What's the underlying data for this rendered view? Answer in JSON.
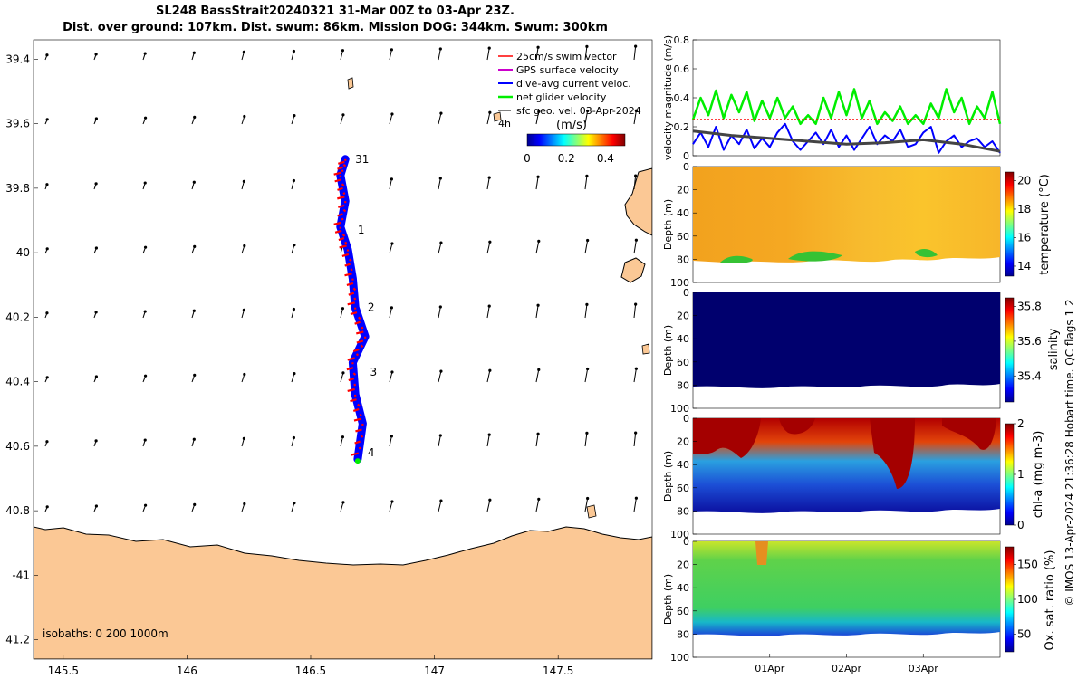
{
  "title": {
    "line1": "SL248 BassStrait20240321 31-Mar 00Z to 03-Apr 23Z.",
    "line2": "Dist. over ground: 107km. Dist. swum: 86km. Mission DOG: 344km. Swum: 300km"
  },
  "colors": {
    "land": "#fbc895",
    "swim": "#ff0000",
    "gps": "#cc00cc",
    "current": "#0000ff",
    "net": "#00ee00",
    "geo": "#000000",
    "deep": "#00006e"
  },
  "footer_text": "© IMOS 13-Apr-2024 21:36:28 Hobart time. QC flags 1  2",
  "chart_data": [
    {
      "id": "map",
      "type": "scatter",
      "title": "",
      "xlabel": "",
      "ylabel": "",
      "xlim": [
        145.38,
        147.88
      ],
      "ylim": [
        -41.26,
        -39.34
      ],
      "xticks": [
        145.5,
        146,
        146.5,
        147,
        147.5
      ],
      "xtick_labels": [
        "145.5",
        "146",
        "146.5",
        "147",
        "147.5"
      ],
      "yticks": [
        -39.4,
        -39.6,
        -39.8,
        -40.0,
        -40.2,
        -40.4,
        -40.6,
        -40.8,
        -41.0,
        -41.2
      ],
      "ytick_labels": [
        "39.4",
        "39.6",
        "39.8",
        "-40",
        "40.2",
        "40.4",
        "40.6",
        "40.8",
        "-41",
        "41.2"
      ],
      "legend": {
        "placement": "top-right",
        "entries": [
          "25cm/s swim vector",
          "GPS surface velocity",
          "dive-avg current veloc.",
          "net glider velocity",
          "sfc geo. vel. 03-Apr-2024"
        ],
        "note": "4h"
      },
      "colorbar": {
        "label": "(m/s)",
        "ticks": [
          0,
          0.2,
          0.4
        ],
        "tick_labels": [
          "0",
          "0.2",
          "0.4"
        ],
        "range": [
          0,
          0.5
        ]
      },
      "track": [
        {
          "lon": 146.64,
          "lat": -39.71
        },
        {
          "lon": 146.62,
          "lat": -39.76
        },
        {
          "lon": 146.64,
          "lat": -39.84
        },
        {
          "lon": 146.62,
          "lat": -39.92
        },
        {
          "lon": 146.65,
          "lat": -39.99
        },
        {
          "lon": 146.67,
          "lat": -40.08
        },
        {
          "lon": 146.68,
          "lat": -40.17
        },
        {
          "lon": 146.72,
          "lat": -40.26
        },
        {
          "lon": 146.67,
          "lat": -40.34
        },
        {
          "lon": 146.68,
          "lat": -40.44
        },
        {
          "lon": 146.71,
          "lat": -40.53
        },
        {
          "lon": 146.69,
          "lat": -40.64
        }
      ],
      "day_labels": [
        {
          "text": "31",
          "lon": 146.68,
          "lat": -39.71
        },
        {
          "text": "1",
          "lon": 146.69,
          "lat": -39.93
        },
        {
          "text": "2",
          "lon": 146.73,
          "lat": -40.17
        },
        {
          "text": "3",
          "lon": 146.74,
          "lat": -40.37
        },
        {
          "text": "4",
          "lon": 146.73,
          "lat": -40.62
        }
      ],
      "isobaths_label": "isobaths: 0   200  1000m"
    },
    {
      "id": "velocity",
      "type": "line",
      "ylabel": "velocity magnitude (m/s)",
      "ylim": [
        0,
        0.8
      ],
      "yticks": [
        0,
        0.2,
        0.4,
        0.6,
        0.8
      ],
      "ytick_labels": [
        "0",
        "0.2",
        "0.4",
        "0.6",
        "0.8"
      ],
      "xlim": [
        0,
        4
      ],
      "series": [
        {
          "name": "net glider velocity",
          "color": "#00ee00",
          "x": [
            0,
            0.1,
            0.2,
            0.3,
            0.4,
            0.5,
            0.6,
            0.7,
            0.8,
            0.9,
            1.0,
            1.1,
            1.2,
            1.3,
            1.4,
            1.5,
            1.6,
            1.7,
            1.8,
            1.9,
            2.0,
            2.1,
            2.2,
            2.3,
            2.4,
            2.5,
            2.6,
            2.7,
            2.8,
            2.9,
            3.0,
            3.1,
            3.2,
            3.3,
            3.4,
            3.5,
            3.6,
            3.7,
            3.8,
            3.9,
            4.0
          ],
          "y": [
            0.25,
            0.4,
            0.28,
            0.45,
            0.26,
            0.42,
            0.3,
            0.44,
            0.24,
            0.38,
            0.26,
            0.4,
            0.26,
            0.34,
            0.22,
            0.28,
            0.22,
            0.4,
            0.26,
            0.44,
            0.28,
            0.46,
            0.26,
            0.38,
            0.22,
            0.3,
            0.24,
            0.34,
            0.22,
            0.28,
            0.22,
            0.36,
            0.26,
            0.46,
            0.3,
            0.4,
            0.22,
            0.34,
            0.26,
            0.44,
            0.22
          ]
        },
        {
          "name": "dive-avg current veloc.",
          "color": "#0000ff",
          "x": [
            0,
            0.1,
            0.2,
            0.3,
            0.4,
            0.5,
            0.6,
            0.7,
            0.8,
            0.9,
            1.0,
            1.1,
            1.2,
            1.3,
            1.4,
            1.5,
            1.6,
            1.7,
            1.8,
            1.9,
            2.0,
            2.1,
            2.2,
            2.3,
            2.4,
            2.5,
            2.6,
            2.7,
            2.8,
            2.9,
            3.0,
            3.1,
            3.2,
            3.3,
            3.4,
            3.5,
            3.6,
            3.7,
            3.8,
            3.9,
            4.0
          ],
          "y": [
            0.08,
            0.16,
            0.06,
            0.2,
            0.04,
            0.14,
            0.08,
            0.18,
            0.05,
            0.12,
            0.06,
            0.16,
            0.22,
            0.1,
            0.04,
            0.1,
            0.16,
            0.08,
            0.18,
            0.06,
            0.14,
            0.04,
            0.12,
            0.2,
            0.08,
            0.14,
            0.1,
            0.18,
            0.06,
            0.08,
            0.16,
            0.2,
            0.02,
            0.1,
            0.14,
            0.06,
            0.1,
            0.12,
            0.06,
            0.1,
            0.02
          ]
        },
        {
          "name": "sfc geo. vel.",
          "color": "#444444",
          "x": [
            0,
            0.5,
            1.0,
            1.5,
            2.0,
            2.5,
            3.0,
            3.5,
            4.0
          ],
          "y": [
            0.17,
            0.14,
            0.12,
            0.1,
            0.08,
            0.09,
            0.11,
            0.08,
            0.03
          ]
        },
        {
          "name": "25cm/s swim vector",
          "color": "#ff0000",
          "x": [
            0,
            4
          ],
          "y": [
            0.25,
            0.25
          ]
        }
      ]
    },
    {
      "id": "temperature",
      "type": "heatmap",
      "ylabel": "Depth (m)",
      "ylim": [
        100,
        0
      ],
      "yticks": [
        0,
        20,
        40,
        60,
        80,
        100
      ],
      "ytick_labels": [
        "0",
        "20",
        "40",
        "60",
        "80",
        "100"
      ],
      "colorbar": {
        "label": "temperature (°C)",
        "range": [
          13.3,
          20.6
        ],
        "ticks": [
          14,
          16,
          18,
          20
        ],
        "tick_labels": [
          "14",
          "16",
          "18",
          "20"
        ]
      }
    },
    {
      "id": "salinity",
      "type": "heatmap",
      "ylabel": "Depth (m)",
      "ylim": [
        100,
        0
      ],
      "yticks": [
        0,
        20,
        40,
        60,
        80,
        100
      ],
      "ytick_labels": [
        "0",
        "20",
        "40",
        "60",
        "80",
        "100"
      ],
      "colorbar": {
        "label": "salinity",
        "range": [
          35.25,
          35.85
        ],
        "ticks": [
          35.4,
          35.6,
          35.8
        ],
        "tick_labels": [
          "35.4",
          "35.6",
          "35.8"
        ]
      }
    },
    {
      "id": "chla",
      "type": "heatmap",
      "ylabel": "Depth (m)",
      "ylim": [
        100,
        0
      ],
      "yticks": [
        0,
        20,
        40,
        60,
        80,
        100
      ],
      "ytick_labels": [
        "0",
        "20",
        "40",
        "60",
        "80",
        "100"
      ],
      "colorbar": {
        "label": "chl-a (mg m-3)",
        "range": [
          0,
          2
        ],
        "ticks": [
          0,
          1,
          2
        ],
        "tick_labels": [
          "0",
          "1",
          "2"
        ]
      }
    },
    {
      "id": "oxygen",
      "type": "heatmap",
      "ylabel": "Depth (m)",
      "ylim": [
        100,
        0
      ],
      "yticks": [
        0,
        20,
        40,
        60,
        80,
        100
      ],
      "ytick_labels": [
        "0",
        "20",
        "40",
        "60",
        "80",
        "100"
      ],
      "xticks": [
        1,
        2,
        3
      ],
      "xtick_labels": [
        "01Apr",
        "02Apr",
        "03Apr"
      ],
      "colorbar": {
        "label": "Ox. sat. ratio (%)",
        "range": [
          25,
          175
        ],
        "ticks": [
          50,
          100,
          150
        ],
        "tick_labels": [
          "50",
          "100",
          "150"
        ]
      }
    }
  ]
}
